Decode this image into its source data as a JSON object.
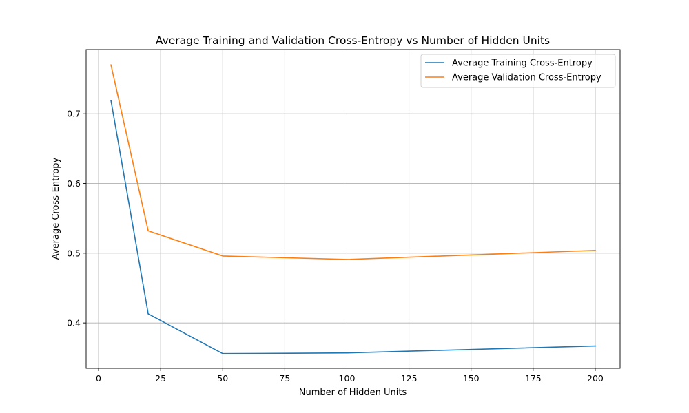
{
  "chart_data": {
    "type": "line",
    "title": "Average Training and Validation Cross-Entropy vs Number of Hidden Units",
    "xlabel": "Number of Hidden Units",
    "ylabel": "Average Cross-Entropy",
    "x": [
      5,
      20,
      50,
      100,
      200
    ],
    "xlim": [
      -5,
      210
    ],
    "ylim": [
      0.335,
      0.792
    ],
    "xticks": [
      0,
      25,
      50,
      75,
      100,
      125,
      150,
      175,
      200
    ],
    "yticks": [
      0.4,
      0.5,
      0.6,
      0.7
    ],
    "grid": true,
    "legend_position": "top-right",
    "series": [
      {
        "name": "Average Training Cross-Entropy",
        "color": "#1f77b4",
        "values": [
          0.719,
          0.413,
          0.356,
          0.357,
          0.367
        ]
      },
      {
        "name": "Average Validation Cross-Entropy",
        "color": "#ff7f0e",
        "values": [
          0.77,
          0.532,
          0.496,
          0.491,
          0.504
        ]
      }
    ]
  }
}
